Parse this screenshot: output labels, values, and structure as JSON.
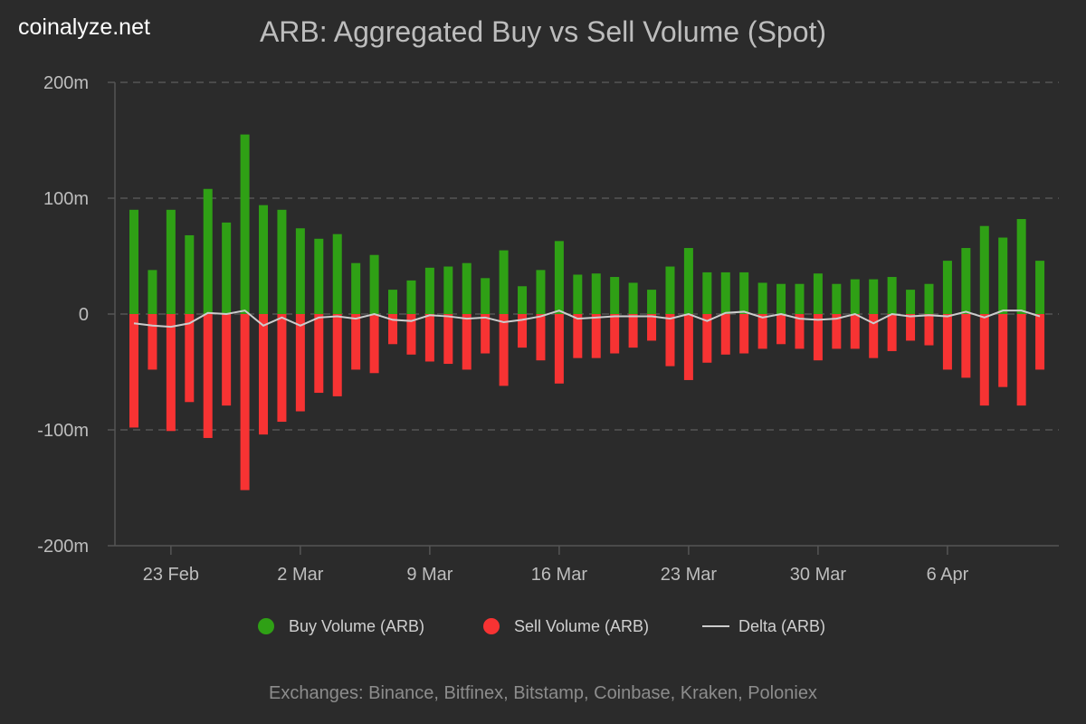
{
  "brand": "coinalyze.net",
  "footer": "Exchanges: Binance, Bitfinex, Bitstamp, Coinbase, Kraken, Poloniex",
  "colors": {
    "buy": "#2fa015",
    "sell": "#f73333",
    "delta": "#cccccc"
  },
  "chart_data": {
    "type": "bar",
    "title": "ARB: Aggregated Buy vs Sell Volume (Spot)",
    "xlabel": "",
    "ylabel": "",
    "ylim": [
      -200,
      200
    ],
    "y_unit": "m",
    "y_ticks": [
      "200m",
      "100m",
      "0",
      "-100m",
      "-200m"
    ],
    "y_tick_values": [
      200,
      100,
      0,
      -100,
      -200
    ],
    "x_ticks": [
      "23 Feb",
      "2 Mar",
      "9 Mar",
      "16 Mar",
      "23 Mar",
      "30 Mar",
      "6 Apr"
    ],
    "x_tick_index": [
      2,
      9,
      16,
      23,
      30,
      37,
      44
    ],
    "categories_start": "21 Feb",
    "legend": [
      "Buy Volume (ARB)",
      "Sell Volume (ARB)",
      "Delta (ARB)"
    ],
    "legend_position": "bottom",
    "series": [
      {
        "name": "Buy Volume (ARB)",
        "values": [
          90,
          38,
          90,
          68,
          108,
          79,
          155,
          94,
          90,
          74,
          65,
          69,
          44,
          51,
          21,
          29,
          40,
          41,
          44,
          31,
          55,
          24,
          38,
          63,
          34,
          35,
          32,
          27,
          21,
          41,
          57,
          36,
          36,
          36,
          27,
          26,
          26,
          35,
          26,
          30,
          30,
          32,
          21,
          26,
          46,
          57,
          76,
          66,
          82,
          46
        ]
      },
      {
        "name": "Sell Volume (ARB)",
        "values": [
          -98,
          -48,
          -101,
          -76,
          -107,
          -79,
          -152,
          -104,
          -93,
          -84,
          -68,
          -71,
          -48,
          -51,
          -26,
          -35,
          -41,
          -43,
          -48,
          -34,
          -62,
          -29,
          -40,
          -60,
          -38,
          -38,
          -34,
          -29,
          -23,
          -45,
          -57,
          -42,
          -35,
          -34,
          -30,
          -26,
          -30,
          -40,
          -30,
          -30,
          -38,
          -32,
          -23,
          -27,
          -48,
          -55,
          -79,
          -63,
          -79,
          -48
        ]
      },
      {
        "name": "Delta (ARB)",
        "values": [
          -8,
          -10,
          -11,
          -8,
          1,
          0,
          3,
          -10,
          -3,
          -10,
          -3,
          -2,
          -4,
          0,
          -5,
          -6,
          -1,
          -2,
          -4,
          -3,
          -7,
          -5,
          -2,
          3,
          -4,
          -3,
          -2,
          -2,
          -2,
          -4,
          0,
          -6,
          1,
          2,
          -3,
          0,
          -4,
          -5,
          -4,
          0,
          -8,
          0,
          -2,
          -1,
          -2,
          2,
          -3,
          3,
          3,
          -2
        ]
      }
    ]
  }
}
